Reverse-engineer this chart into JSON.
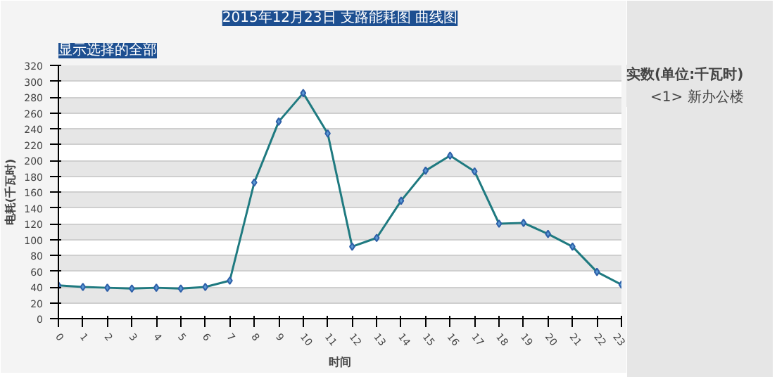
{
  "chart_data": {
    "type": "line",
    "title": "2015年12月23日 支路能耗图 曲线图",
    "subtitle": "显示选择的全部",
    "xlabel": "时间",
    "ylabel": "电耗(千瓦时)",
    "legend_title": "实数(单位:千瓦时)",
    "x": [
      0,
      1,
      2,
      3,
      4,
      5,
      6,
      7,
      8,
      9,
      10,
      11,
      12,
      13,
      14,
      15,
      16,
      17,
      18,
      19,
      20,
      21,
      22,
      23
    ],
    "series": [
      {
        "name": "<1> 新办公楼",
        "color": "#1f7a80",
        "values": [
          42,
          40,
          39,
          38,
          39,
          38,
          40,
          48,
          172,
          249,
          285,
          234,
          91,
          102,
          149,
          187,
          206,
          186,
          120,
          121,
          107,
          91,
          59,
          43
        ]
      }
    ],
    "xlim": [
      0,
      23
    ],
    "xticks": [
      0,
      1,
      2,
      3,
      4,
      5,
      6,
      7,
      8,
      9,
      10,
      11,
      12,
      13,
      14,
      15,
      16,
      17,
      18,
      19,
      20,
      21,
      22,
      23
    ],
    "ylim": [
      0,
      320
    ],
    "yticks": [
      0,
      20,
      40,
      60,
      80,
      100,
      120,
      140,
      160,
      180,
      200,
      220,
      240,
      260,
      280,
      300,
      320
    ],
    "grid": "y",
    "legend": "right",
    "marker": "diamond",
    "line_style": "solid"
  }
}
